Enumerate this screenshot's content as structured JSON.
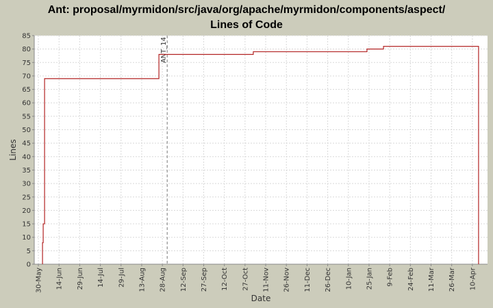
{
  "chart_data": {
    "type": "step",
    "title": "Ant: proposal/myrmidon/src/java/org/apache/myrmidon/components/aspect/",
    "subtitle": "Lines of Code",
    "x_label": "Date",
    "y_label": "Lines",
    "color": "#b22222",
    "grid": true,
    "x": [
      3,
      3,
      3.5,
      4.5,
      87.5,
      156,
      238.5,
      250.5,
      319.5
    ],
    "values": [
      0,
      8,
      15,
      69,
      78,
      79,
      80,
      81,
      0
    ],
    "xlim": [
      -3,
      326
    ],
    "xticks": [
      {
        "value": 0,
        "label": "30-May"
      },
      {
        "value": 15,
        "label": "14-Jun"
      },
      {
        "value": 30,
        "label": "29-Jun"
      },
      {
        "value": 45,
        "label": "14-Jul"
      },
      {
        "value": 60,
        "label": "29-Jul"
      },
      {
        "value": 75,
        "label": "13-Aug"
      },
      {
        "value": 90,
        "label": "28-Aug"
      },
      {
        "value": 105,
        "label": "12-Sep"
      },
      {
        "value": 120,
        "label": "27-Sep"
      },
      {
        "value": 135,
        "label": "12-Oct"
      },
      {
        "value": 150,
        "label": "27-Oct"
      },
      {
        "value": 165,
        "label": "11-Nov"
      },
      {
        "value": 180,
        "label": "26-Nov"
      },
      {
        "value": 195,
        "label": "11-Dec"
      },
      {
        "value": 210,
        "label": "26-Dec"
      },
      {
        "value": 225,
        "label": "10-Jan"
      },
      {
        "value": 240,
        "label": "25-Jan"
      },
      {
        "value": 255,
        "label": "9-Feb"
      },
      {
        "value": 270,
        "label": "24-Feb"
      },
      {
        "value": 285,
        "label": "11-Mar"
      },
      {
        "value": 300,
        "label": "26-Mar"
      },
      {
        "value": 315,
        "label": "10-Apr"
      }
    ],
    "ylim": [
      0,
      85
    ],
    "yticks": [
      0,
      5,
      10,
      15,
      20,
      25,
      30,
      35,
      40,
      45,
      50,
      55,
      60,
      65,
      70,
      75,
      80,
      85
    ],
    "annotations": [
      {
        "label": "ANT_14",
        "x": 93.5
      }
    ]
  }
}
